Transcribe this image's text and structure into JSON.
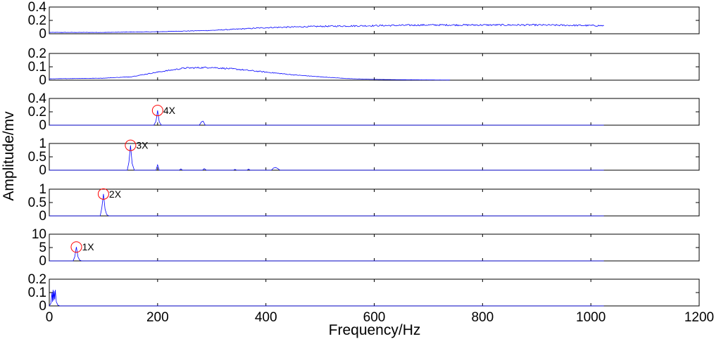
{
  "chart_data": {
    "type": "line",
    "xlabel": "Frequency/Hz",
    "ylabel": "Amplitude/mv",
    "xlim": [
      0,
      1200
    ],
    "xticks": [
      "0",
      "200",
      "400",
      "600",
      "800",
      "1000",
      "1200"
    ],
    "line_color": "#0000ff",
    "marker_color": "#ff0000",
    "grid": false,
    "panels": [
      {
        "ylim": [
          0,
          0.4
        ],
        "yticks": [
          "0",
          "0.2",
          "0.4"
        ],
        "annotation": null,
        "series": [
          {
            "x": 0,
            "y": 0.02
          },
          {
            "x": 100,
            "y": 0.02
          },
          {
            "x": 200,
            "y": 0.03
          },
          {
            "x": 300,
            "y": 0.05
          },
          {
            "x": 400,
            "y": 0.09
          },
          {
            "x": 500,
            "y": 0.11
          },
          {
            "x": 600,
            "y": 0.12
          },
          {
            "x": 700,
            "y": 0.13
          },
          {
            "x": 800,
            "y": 0.13
          },
          {
            "x": 900,
            "y": 0.13
          },
          {
            "x": 1024,
            "y": 0.12
          }
        ],
        "noise": 0.12
      },
      {
        "ylim": [
          0,
          0.2
        ],
        "yticks": [
          "0",
          "0.1",
          "0.2"
        ],
        "annotation": null,
        "series": [
          {
            "x": 0,
            "y": 0.01
          },
          {
            "x": 100,
            "y": 0.015
          },
          {
            "x": 150,
            "y": 0.025
          },
          {
            "x": 200,
            "y": 0.06
          },
          {
            "x": 250,
            "y": 0.09
          },
          {
            "x": 300,
            "y": 0.095
          },
          {
            "x": 350,
            "y": 0.08
          },
          {
            "x": 400,
            "y": 0.06
          },
          {
            "x": 450,
            "y": 0.04
          },
          {
            "x": 500,
            "y": 0.025
          },
          {
            "x": 550,
            "y": 0.012
          },
          {
            "x": 600,
            "y": 0.006
          },
          {
            "x": 650,
            "y": 0.003
          },
          {
            "x": 740,
            "y": 0.001
          }
        ],
        "noise": 0.08
      },
      {
        "ylim": [
          0,
          0.4
        ],
        "yticks": [
          "0",
          "0.2",
          "0.4"
        ],
        "annotation": {
          "label": "4X",
          "x": 200,
          "y": 0.22
        },
        "series": [
          {
            "x": 0,
            "y": 0
          },
          {
            "x": 193,
            "y": 0
          },
          {
            "x": 197,
            "y": 0.06
          },
          {
            "x": 200,
            "y": 0.22
          },
          {
            "x": 203,
            "y": 0.05
          },
          {
            "x": 207,
            "y": 0
          },
          {
            "x": 277,
            "y": 0
          },
          {
            "x": 281,
            "y": 0.05
          },
          {
            "x": 284,
            "y": 0.06
          },
          {
            "x": 288,
            "y": 0
          },
          {
            "x": 1024,
            "y": 0
          }
        ],
        "noise": 0.003
      },
      {
        "ylim": [
          0,
          1
        ],
        "yticks": [
          "0",
          "0.5",
          "1"
        ],
        "annotation": {
          "label": "3X",
          "x": 150,
          "y": 0.93
        },
        "series": [
          {
            "x": 0,
            "y": 0
          },
          {
            "x": 144,
            "y": 0
          },
          {
            "x": 147,
            "y": 0.3
          },
          {
            "x": 150,
            "y": 0.93
          },
          {
            "x": 153,
            "y": 0.25
          },
          {
            "x": 157,
            "y": 0
          },
          {
            "x": 197,
            "y": 0
          },
          {
            "x": 200,
            "y": 0.2
          },
          {
            "x": 203,
            "y": 0
          },
          {
            "x": 240,
            "y": 0
          },
          {
            "x": 243,
            "y": 0.05
          },
          {
            "x": 246,
            "y": 0
          },
          {
            "x": 283,
            "y": 0
          },
          {
            "x": 286,
            "y": 0.06
          },
          {
            "x": 290,
            "y": 0
          },
          {
            "x": 340,
            "y": 0
          },
          {
            "x": 343,
            "y": 0.03
          },
          {
            "x": 346,
            "y": 0
          },
          {
            "x": 365,
            "y": 0
          },
          {
            "x": 368,
            "y": 0.04
          },
          {
            "x": 371,
            "y": 0
          },
          {
            "x": 410,
            "y": 0
          },
          {
            "x": 414,
            "y": 0.08
          },
          {
            "x": 418,
            "y": 0.1
          },
          {
            "x": 422,
            "y": 0.06
          },
          {
            "x": 426,
            "y": 0
          },
          {
            "x": 1024,
            "y": 0
          }
        ],
        "noise": 0.005
      },
      {
        "ylim": [
          0,
          1
        ],
        "yticks": [
          "0",
          "0.5",
          "1"
        ],
        "annotation": {
          "label": "2X",
          "x": 100,
          "y": 0.82
        },
        "series": [
          {
            "x": 0,
            "y": 0
          },
          {
            "x": 94,
            "y": 0
          },
          {
            "x": 97,
            "y": 0.3
          },
          {
            "x": 100,
            "y": 0.82
          },
          {
            "x": 103,
            "y": 0.25
          },
          {
            "x": 106,
            "y": 0.05
          },
          {
            "x": 110,
            "y": 0
          },
          {
            "x": 1024,
            "y": 0
          }
        ],
        "noise": 0.002
      },
      {
        "ylim": [
          0,
          10
        ],
        "yticks": [
          "0",
          "5",
          "10"
        ],
        "annotation": {
          "label": "1X",
          "x": 50,
          "y": 5.2
        },
        "series": [
          {
            "x": 0,
            "y": 0
          },
          {
            "x": 44,
            "y": 0
          },
          {
            "x": 47,
            "y": 1.5
          },
          {
            "x": 50,
            "y": 5.2
          },
          {
            "x": 53,
            "y": 1.5
          },
          {
            "x": 56,
            "y": 0.3
          },
          {
            "x": 60,
            "y": 0
          },
          {
            "x": 1024,
            "y": 0
          }
        ],
        "noise": 0.02
      },
      {
        "ylim": [
          0,
          0.2
        ],
        "yticks": [
          "0",
          "0.1",
          "0.2"
        ],
        "annotation": null,
        "series": [
          {
            "x": 0,
            "y": 0
          },
          {
            "x": 3,
            "y": 0.02
          },
          {
            "x": 5,
            "y": 0.1
          },
          {
            "x": 6,
            "y": 0.03
          },
          {
            "x": 7,
            "y": 0.12
          },
          {
            "x": 8,
            "y": 0.04
          },
          {
            "x": 9,
            "y": 0.11
          },
          {
            "x": 10,
            "y": 0.05
          },
          {
            "x": 11,
            "y": 0.12
          },
          {
            "x": 13,
            "y": 0.03
          },
          {
            "x": 16,
            "y": 0.005
          },
          {
            "x": 20,
            "y": 0
          },
          {
            "x": 1024,
            "y": 0
          }
        ],
        "noise": 0.001
      }
    ]
  }
}
